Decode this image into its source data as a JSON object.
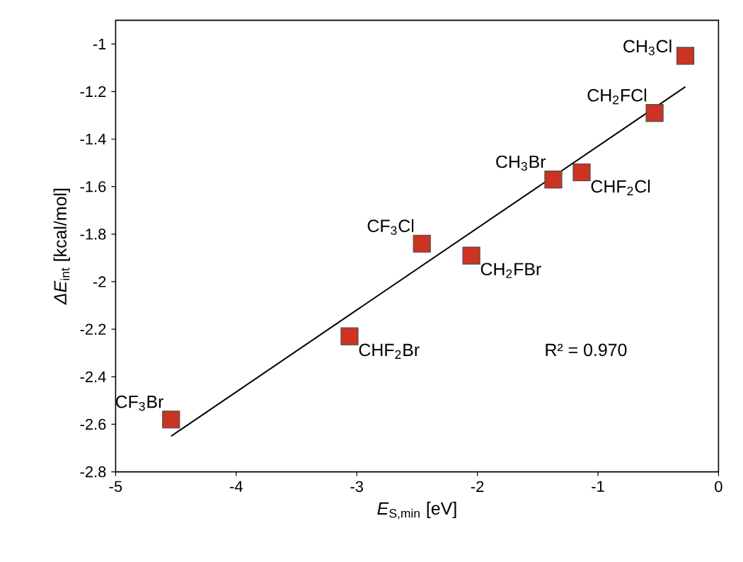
{
  "chart_data": {
    "type": "scatter",
    "xlabel": "*E*$_{S,min}$ [eV]",
    "ylabel": "*ΔE*$_{int}$ [kcal/mol]",
    "xlim": [
      -5,
      0
    ],
    "ylim": [
      -2.8,
      -0.9
    ],
    "xticks": [
      -5,
      -4,
      -3,
      -2,
      -1,
      0
    ],
    "yticks": [
      -2.8,
      -2.6,
      -2.4,
      -2.2,
      -2,
      -1.8,
      -1.6,
      -1.4,
      -1.2,
      -1
    ],
    "marker": "square",
    "grid": false,
    "series": [
      {
        "color": "#cc3322",
        "x": [
          -0.275,
          -0.53,
          -1.37,
          -1.135,
          -2.46,
          -2.05,
          -3.06,
          -4.54
        ],
        "values": [
          -1.05,
          -1.29,
          -1.57,
          -1.54,
          -1.84,
          -1.89,
          -2.23,
          -2.58
        ]
      },
      {
        "type": "line",
        "color": "#000000",
        "marker": "none",
        "x": [
          -4.54,
          -0.275
        ],
        "values": [
          -2.65,
          -1.18
        ]
      }
    ],
    "annotations": [
      {
        "text": "CH$_{3}$Cl",
        "x": -0.275,
        "y": -1.05
      },
      {
        "text": "CH$_{2}$FCl",
        "x": -0.53,
        "y": -1.29
      },
      {
        "text": "CH$_{3}$Br",
        "x": -1.37,
        "y": -1.57
      },
      {
        "text": "CHF$_{2}$Cl",
        "x": -1.135,
        "y": -1.54
      },
      {
        "text": "CF$_{3}$Cl",
        "x": -2.46,
        "y": -1.84
      },
      {
        "text": "CH$_{2}$FBr",
        "x": -2.05,
        "y": -1.89
      },
      {
        "text": "CHF$_{2}$Br",
        "x": -3.06,
        "y": -2.23
      },
      {
        "text": "CF$_{3}$Br",
        "x": -4.54,
        "y": -2.58
      },
      "R² = 0.970"
    ]
  }
}
